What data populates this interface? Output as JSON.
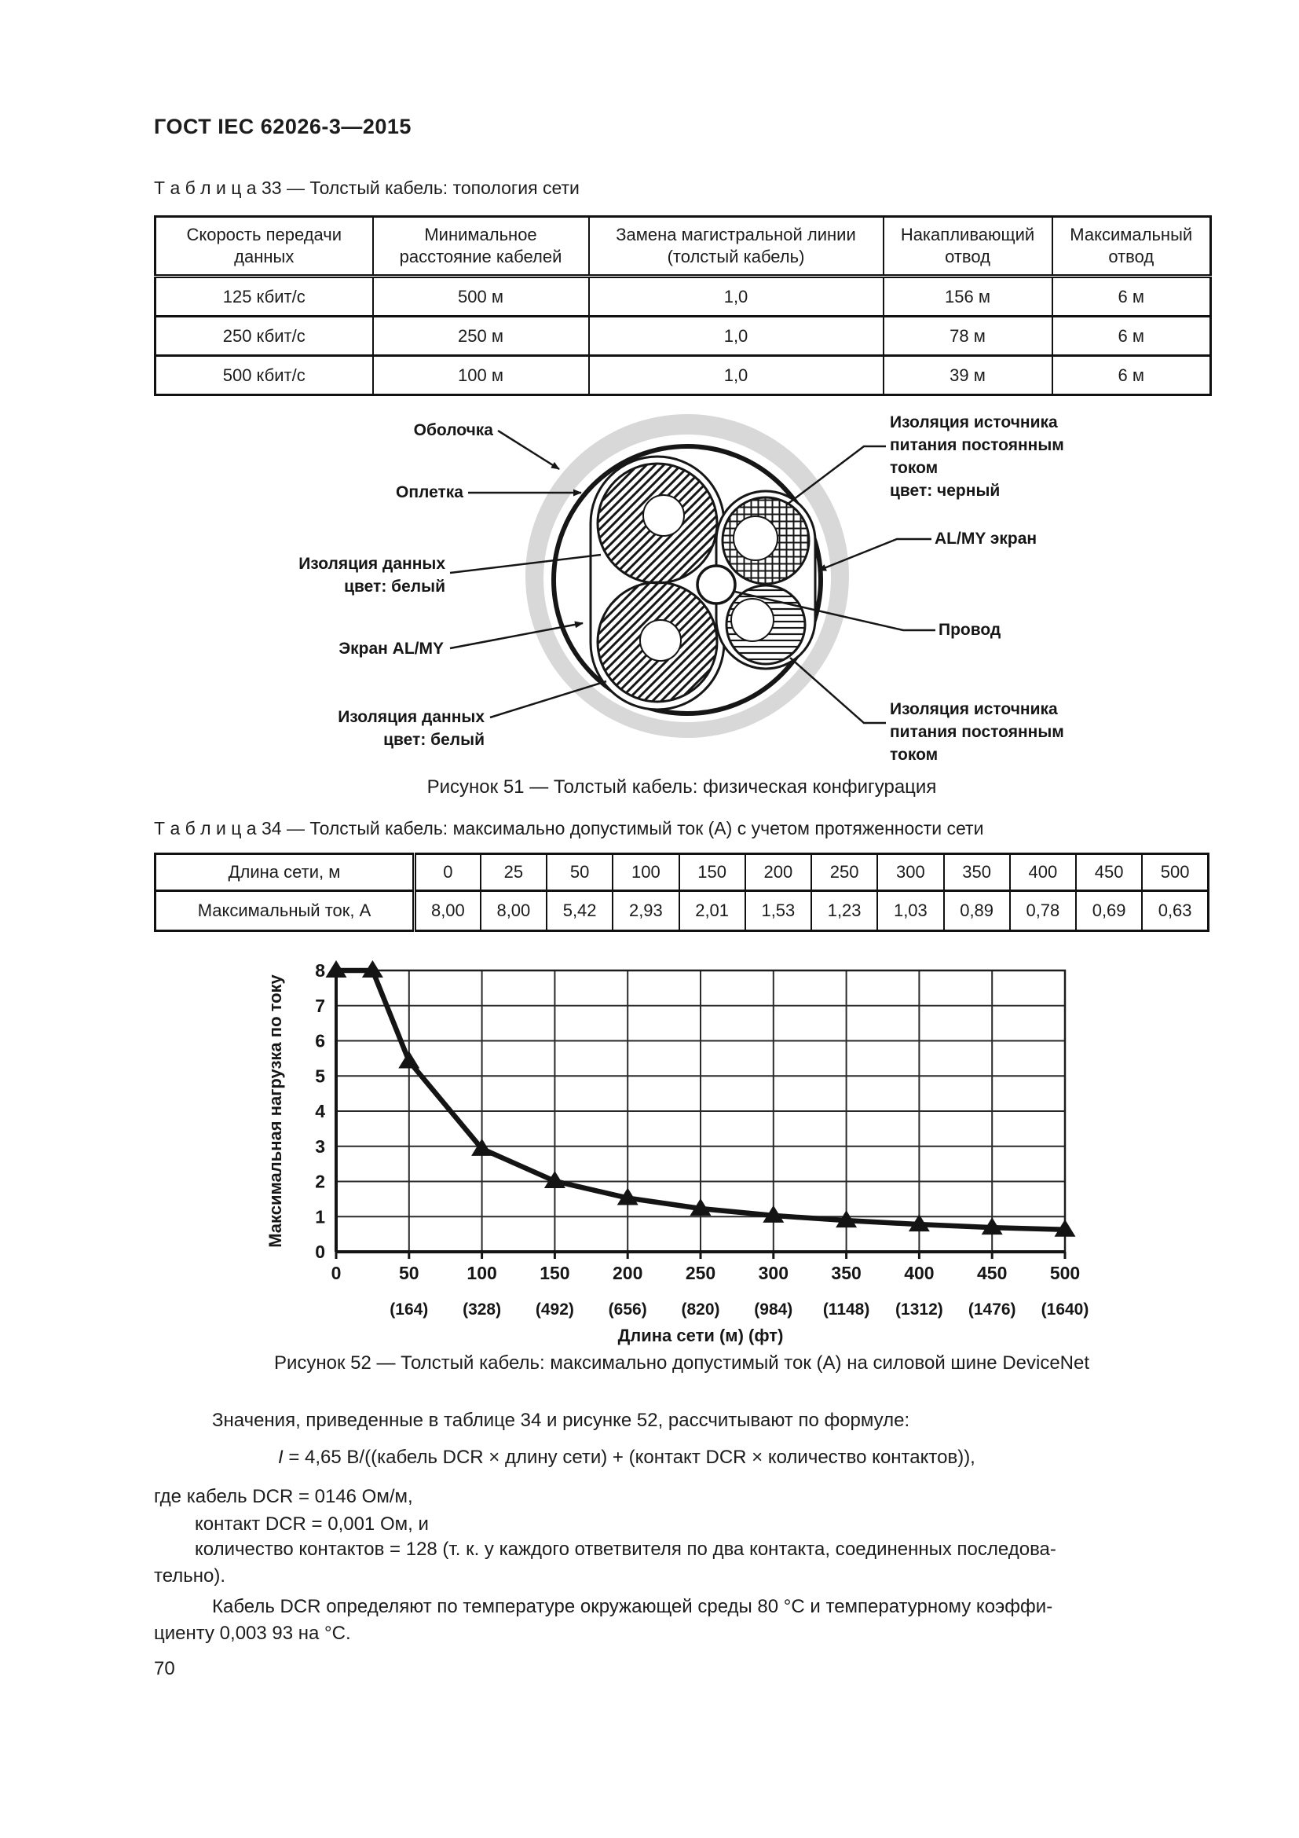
{
  "page": {
    "number": "70"
  },
  "header": {
    "title": "ГОСТ IEC 62026-3—2015"
  },
  "table33": {
    "caption": "Т а б л и ц а  33 — Толстый кабель: топология сети",
    "headers": [
      "Скорость передачи\nданных",
      "Минимальное\nрасстояние кабелей",
      "Замена магистральной линии\n(толстый кабель)",
      "Накапливающий\nотвод",
      "Максимальный\nотвод"
    ],
    "rows": [
      [
        "125 кбит/с",
        "500 м",
        "1,0",
        "156 м",
        "6 м"
      ],
      [
        "250 кбит/с",
        "250 м",
        "1,0",
        "78 м",
        "6 м"
      ],
      [
        "500 кбит/с",
        "100 м",
        "1,0",
        "39 м",
        "6 м"
      ]
    ]
  },
  "figure51": {
    "caption": "Рисунок 51 — Толстый кабель: физическая конфигурация",
    "labels": {
      "sheath": "Оболочка",
      "braid": "Оплетка",
      "data_insulation_top": "Изоляция данных\nцвет: белый",
      "screen_almy": "Экран AL/MY",
      "data_insulation_bottom": "Изоляция данных\nцвет: белый",
      "power_insulation_top": "Изоляция источника\nпитания постоянным\nтоком\nцвет: черный",
      "almy_screen": "AL/MY экран",
      "wire": "Провод",
      "power_insulation_bottom": "Изоляция источника\nпитания постоянным\nтоком"
    }
  },
  "table34": {
    "caption": "Т а б л и ц а  34 — Толстый кабель: максимально допустимый ток (А) с учетом протяженности сети",
    "row1_label": "Длина сети, м",
    "row2_label": "Максимальный ток, А",
    "lengths": [
      "0",
      "25",
      "50",
      "100",
      "150",
      "200",
      "250",
      "300",
      "350",
      "400",
      "450",
      "500"
    ],
    "currents": [
      "8,00",
      "8,00",
      "5,42",
      "2,93",
      "2,01",
      "1,53",
      "1,23",
      "1,03",
      "0,89",
      "0,78",
      "0,69",
      "0,63"
    ]
  },
  "chart_data": {
    "type": "line",
    "title": "",
    "x": [
      0,
      25,
      50,
      100,
      150,
      200,
      250,
      300,
      350,
      400,
      450,
      500
    ],
    "series": [
      {
        "name": "Максимальный ток, А",
        "values": [
          8.0,
          8.0,
          5.42,
          2.93,
          2.01,
          1.53,
          1.23,
          1.03,
          0.89,
          0.78,
          0.69,
          0.63
        ]
      }
    ],
    "xlabel": "Длина сети (м) (фт)",
    "ylabel": "Максимальная нагрузка по току",
    "xlim": [
      0,
      500
    ],
    "ylim": [
      0,
      8
    ],
    "x_ticks": [
      0,
      50,
      100,
      150,
      200,
      250,
      300,
      350,
      400,
      450,
      500
    ],
    "x_ticks_feet": [
      "(164)",
      "(328)",
      "(492)",
      "(656)",
      "(820)",
      "(984)",
      "(1148)",
      "(1312)",
      "(1476)",
      "(1640)"
    ],
    "y_ticks": [
      0,
      1,
      2,
      3,
      4,
      5,
      6,
      7,
      8
    ],
    "grid": true,
    "legend_position": "none",
    "marker": "triangle-up",
    "line_color": "#141414"
  },
  "figure52": {
    "caption": "Рисунок 52 — Толстый кабель: максимально допустимый ток (А) на силовой шине DeviceNet"
  },
  "paragraphs": {
    "p1": "Значения, приведенные в таблице 34 и рисунке 52, рассчитывают по формуле:",
    "formula_var": "I",
    "formula_rest": " = 4,65 В/((кабель DCR × длину сети) + (контакт DCR × количество контактов)),",
    "p2": "где кабель DCR = 0146 Ом/м,",
    "p3": "контакт DCR = 0,001 Ом, и",
    "p4": "количество контактов = 128 (т. к. у каждого ответвителя по два контакта, соединенных последова-\nтельно).",
    "p5": "Кабель DCR определяют по температуре окружающей среды 80 °С и температурному коэффи-\nциенту 0,003 93 на °С."
  }
}
